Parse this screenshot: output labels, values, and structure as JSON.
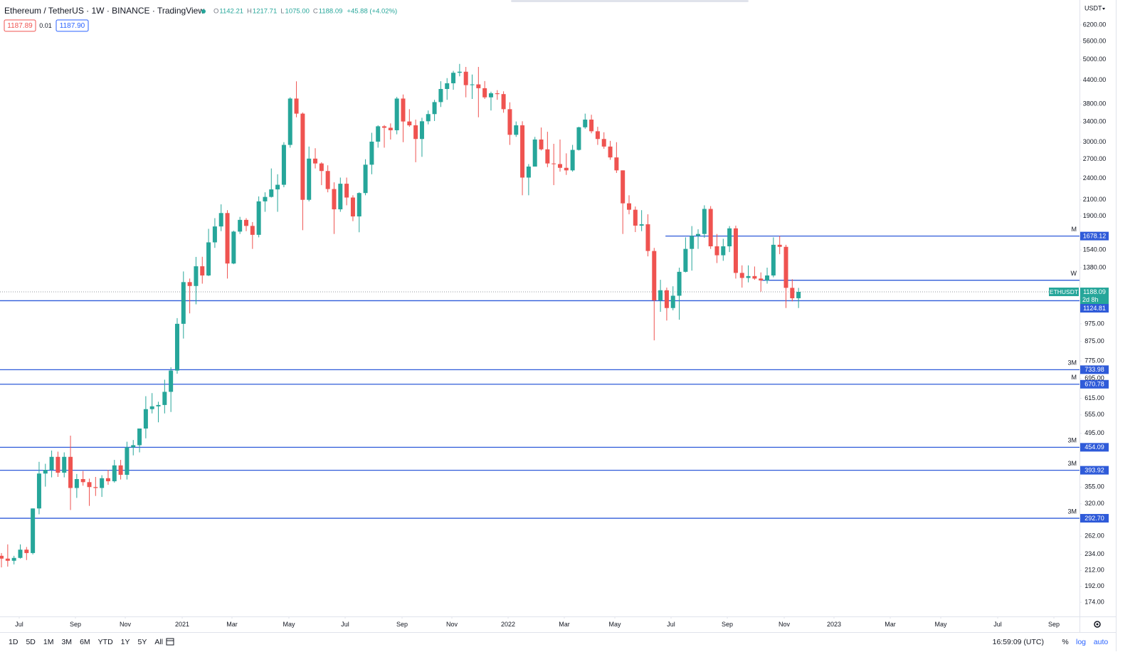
{
  "header": {
    "symbol": "Ethereum / TetherUS · 1W · BINANCE · TradingView",
    "legend": [
      {
        "key": "O",
        "value": "1142.21"
      },
      {
        "key": "H",
        "value": "1217.71"
      },
      {
        "key": "L",
        "value": "1075.00"
      },
      {
        "key": "C",
        "value": "1188.09"
      },
      {
        "key": "",
        "value": "+45.88 (+4.02%)"
      }
    ],
    "bid": "1187.89",
    "spread": "0.01",
    "ask": "1187.90",
    "currency": "USDT"
  },
  "toolbar": {
    "ranges": [
      "1D",
      "5D",
      "1M",
      "3M",
      "6M",
      "YTD",
      "1Y",
      "5Y",
      "All"
    ],
    "clock": "16:59:09 (UTC)",
    "percent": "%",
    "log": "log",
    "auto": "auto"
  },
  "chart_data": {
    "type": "candlestick",
    "log_scale": true,
    "grid": false,
    "up_color": "#26a69a",
    "down_color": "#ef5350",
    "level_color": "#2f5bd9",
    "xlim": [
      -0.23,
      171.77
    ],
    "ylim": [
      159.4,
      7232
    ],
    "xticks": [
      {
        "value": 2.83,
        "label": "Jul"
      },
      {
        "value": 11.79,
        "label": "Sep"
      },
      {
        "value": 19.73,
        "label": "Nov"
      },
      {
        "value": 28.8,
        "label": "2021"
      },
      {
        "value": 36.73,
        "label": "Mar"
      },
      {
        "value": 45.8,
        "label": "May"
      },
      {
        "value": 54.76,
        "label": "Jul"
      },
      {
        "value": 63.83,
        "label": "Sep"
      },
      {
        "value": 71.77,
        "label": "Nov"
      },
      {
        "value": 80.73,
        "label": "2022"
      },
      {
        "value": 89.68,
        "label": "Mar"
      },
      {
        "value": 97.73,
        "label": "May"
      },
      {
        "value": 106.69,
        "label": "Jul"
      },
      {
        "value": 115.65,
        "label": "Sep"
      },
      {
        "value": 124.72,
        "label": "Nov"
      },
      {
        "value": 132.65,
        "label": "2023"
      },
      {
        "value": 141.61,
        "label": "Mar"
      },
      {
        "value": 149.66,
        "label": "May"
      },
      {
        "value": 158.73,
        "label": "Jul"
      },
      {
        "value": 167.69,
        "label": "Sep"
      }
    ],
    "yticks": [
      {
        "value": 6200,
        "label": "6200.00"
      },
      {
        "value": 5600,
        "label": "5600.00"
      },
      {
        "value": 5000,
        "label": "5000.00"
      },
      {
        "value": 4400,
        "label": "4400.00"
      },
      {
        "value": 3800,
        "label": "3800.00"
      },
      {
        "value": 3400,
        "label": "3400.00"
      },
      {
        "value": 3000,
        "label": "3000.00"
      },
      {
        "value": 2700,
        "label": "2700.00"
      },
      {
        "value": 2400,
        "label": "2400.00"
      },
      {
        "value": 2100,
        "label": "2100.00"
      },
      {
        "value": 1900,
        "label": "1900.00"
      },
      {
        "value": 1540,
        "label": "1540.00"
      },
      {
        "value": 1380,
        "label": "1380.00"
      },
      {
        "value": 975,
        "label": "975.00"
      },
      {
        "value": 875,
        "label": "875.00"
      },
      {
        "value": 775,
        "label": "775.00"
      },
      {
        "value": 695,
        "label": "695.00"
      },
      {
        "value": 615,
        "label": "615.00"
      },
      {
        "value": 555,
        "label": "555.00"
      },
      {
        "value": 495,
        "label": "495.00"
      },
      {
        "value": 355,
        "label": "355.00"
      },
      {
        "value": 320,
        "label": "320.00"
      },
      {
        "value": 262,
        "label": "262.00"
      },
      {
        "value": 234,
        "label": "234.00"
      },
      {
        "value": 212,
        "label": "212.00"
      },
      {
        "value": 192,
        "label": "192.00"
      },
      {
        "value": 174,
        "label": "174.00"
      }
    ],
    "levels": [
      {
        "value": 1678.12,
        "tag": "M",
        "start": 105.8
      },
      {
        "value": 1276.72,
        "tag": "W",
        "start": 121.1
      },
      {
        "value": 1124.81
      },
      {
        "value": 733.98,
        "tag": "3M"
      },
      {
        "value": 670.78,
        "tag": "M"
      },
      {
        "value": 454.09,
        "tag": "3M"
      },
      {
        "value": 393.92,
        "tag": "3M"
      },
      {
        "value": 292.7,
        "label": "292.70",
        "tag": "3M"
      }
    ],
    "last": {
      "value": 1188.09,
      "symbol": "ETHUSDT",
      "countdown": "2d 8h"
    },
    "ohlc": [
      [
        232,
        236,
        216,
        228
      ],
      [
        228,
        249,
        217,
        225
      ],
      [
        225,
        232,
        220,
        229
      ],
      [
        229,
        249,
        228,
        241
      ],
      [
        241,
        245,
        226,
        236
      ],
      [
        236,
        311,
        234,
        311
      ],
      [
        311,
        415,
        300,
        386
      ],
      [
        386,
        410,
        356,
        395
      ],
      [
        395,
        445,
        377,
        428
      ],
      [
        428,
        442,
        378,
        388
      ],
      [
        388,
        440,
        377,
        428
      ],
      [
        428,
        488,
        308,
        353
      ],
      [
        353,
        385,
        332,
        373
      ],
      [
        373,
        392,
        358,
        366
      ],
      [
        366,
        374,
        316,
        355
      ],
      [
        355,
        378,
        336,
        353
      ],
      [
        353,
        382,
        334,
        375
      ],
      [
        375,
        395,
        360,
        368
      ],
      [
        368,
        420,
        365,
        406
      ],
      [
        406,
        420,
        372,
        383
      ],
      [
        383,
        470,
        372,
        454
      ],
      [
        454,
        475,
        432,
        460
      ],
      [
        460,
        510,
        440,
        510
      ],
      [
        510,
        623,
        480,
        575
      ],
      [
        575,
        635,
        560,
        585
      ],
      [
        585,
        602,
        530,
        590
      ],
      [
        590,
        690,
        560,
        640
      ],
      [
        640,
        745,
        565,
        730
      ],
      [
        730,
        1010,
        716,
        975
      ],
      [
        975,
        1348,
        890,
        1262
      ],
      [
        1262,
        1290,
        1040,
        1232
      ],
      [
        1232,
        1475,
        1100,
        1392
      ],
      [
        1392,
        1476,
        1250,
        1315
      ],
      [
        1315,
        1755,
        1310,
        1614
      ],
      [
        1614,
        1875,
        1560,
        1781
      ],
      [
        1781,
        2042,
        1730,
        1935
      ],
      [
        1935,
        1970,
        1290,
        1416
      ],
      [
        1416,
        1735,
        1410,
        1725
      ],
      [
        1725,
        1890,
        1700,
        1855
      ],
      [
        1855,
        1875,
        1730,
        1787
      ],
      [
        1787,
        1830,
        1550,
        1691
      ],
      [
        1691,
        2145,
        1665,
        2080
      ],
      [
        2080,
        2200,
        1950,
        2138
      ],
      [
        2138,
        2550,
        2130,
        2240
      ],
      [
        2240,
        2460,
        1950,
        2305
      ],
      [
        2305,
        3000,
        2270,
        2950
      ],
      [
        2950,
        3960,
        2900,
        3930
      ],
      [
        3930,
        4372,
        3500,
        3580
      ],
      [
        3580,
        3605,
        1740,
        2100
      ],
      [
        2100,
        2920,
        2080,
        2710
      ],
      [
        2710,
        2890,
        2550,
        2630
      ],
      [
        2630,
        2650,
        2300,
        2510
      ],
      [
        2510,
        2600,
        2200,
        2245
      ],
      [
        2245,
        2340,
        1700,
        1980
      ],
      [
        1980,
        2410,
        1950,
        2320
      ],
      [
        2320,
        2410,
        2030,
        2130
      ],
      [
        2130,
        2160,
        1840,
        1895
      ],
      [
        1895,
        2200,
        1718,
        2190
      ],
      [
        2190,
        2700,
        2160,
        2610
      ],
      [
        2610,
        3180,
        2460,
        3010
      ],
      [
        3010,
        3330,
        2900,
        3310
      ],
      [
        3310,
        3335,
        2900,
        3280
      ],
      [
        3280,
        3370,
        3050,
        3230
      ],
      [
        3230,
        3970,
        3150,
        3930
      ],
      [
        3930,
        4030,
        3000,
        3410
      ],
      [
        3410,
        3680,
        3300,
        3330
      ],
      [
        3330,
        3450,
        2650,
        3060
      ],
      [
        3060,
        3490,
        2740,
        3415
      ],
      [
        3415,
        3650,
        3350,
        3570
      ],
      [
        3570,
        3900,
        3420,
        3845
      ],
      [
        3845,
        4375,
        3730,
        4170
      ],
      [
        4170,
        4460,
        3900,
        4320
      ],
      [
        4320,
        4665,
        4150,
        4610
      ],
      [
        4610,
        4870,
        4510,
        4640
      ],
      [
        4640,
        4780,
        3960,
        4270
      ],
      [
        4270,
        4560,
        3920,
        4290
      ],
      [
        4290,
        4780,
        3500,
        4190
      ],
      [
        4190,
        4380,
        3920,
        3960
      ],
      [
        3960,
        4100,
        3650,
        4060
      ],
      [
        4060,
        4140,
        3900,
        4040
      ],
      [
        4040,
        4110,
        3600,
        3680
      ],
      [
        3680,
        3840,
        2950,
        3140
      ],
      [
        3140,
        3410,
        3100,
        3330
      ],
      [
        3330,
        3415,
        2160,
        2410
      ],
      [
        2410,
        2620,
        2160,
        2580
      ],
      [
        2580,
        3100,
        2580,
        3050
      ],
      [
        3050,
        3285,
        2850,
        2870
      ],
      [
        2870,
        3200,
        2570,
        2630
      ],
      [
        2630,
        2970,
        2300,
        2620
      ],
      [
        2620,
        3050,
        2500,
        2560
      ],
      [
        2560,
        2800,
        2450,
        2520
      ],
      [
        2520,
        2950,
        2500,
        2860
      ],
      [
        2860,
        3300,
        2850,
        3290
      ],
      [
        3290,
        3580,
        3260,
        3450
      ],
      [
        3450,
        3555,
        3170,
        3210
      ],
      [
        3210,
        3300,
        2950,
        3060
      ],
      [
        3060,
        3190,
        2880,
        2920
      ],
      [
        2920,
        3025,
        2690,
        2730
      ],
      [
        2730,
        3000,
        2480,
        2520
      ],
      [
        2520,
        2520,
        1700,
        2055
      ],
      [
        2055,
        2160,
        1920,
        1975
      ],
      [
        1975,
        2015,
        1720,
        1790
      ],
      [
        1790,
        1970,
        1730,
        1805
      ],
      [
        1805,
        1920,
        1480,
        1530
      ],
      [
        1530,
        1560,
        880,
        1127
      ],
      [
        1127,
        1280,
        1050,
        1200
      ],
      [
        1200,
        1220,
        995,
        1075
      ],
      [
        1075,
        1230,
        1060,
        1160
      ],
      [
        1160,
        1380,
        1000,
        1345
      ],
      [
        1345,
        1665,
        1340,
        1550
      ],
      [
        1550,
        1785,
        1355,
        1680
      ],
      [
        1680,
        1750,
        1550,
        1700
      ],
      [
        1700,
        2030,
        1660,
        1985
      ],
      [
        1985,
        2020,
        1550,
        1575
      ],
      [
        1575,
        1700,
        1420,
        1490
      ],
      [
        1490,
        1650,
        1440,
        1575
      ],
      [
        1575,
        1785,
        1520,
        1760
      ],
      [
        1760,
        1790,
        1290,
        1336
      ],
      [
        1336,
        1400,
        1220,
        1295
      ],
      [
        1295,
        1400,
        1260,
        1310
      ],
      [
        1310,
        1390,
        1280,
        1290
      ],
      [
        1290,
        1340,
        1190,
        1275
      ],
      [
        1275,
        1380,
        1250,
        1315
      ],
      [
        1315,
        1665,
        1300,
        1590
      ],
      [
        1590,
        1680,
        1500,
        1570
      ],
      [
        1570,
        1590,
        1075,
        1218
      ],
      [
        1218,
        1285,
        1120,
        1142
      ],
      [
        1142.21,
        1217.71,
        1075,
        1188.09
      ]
    ]
  }
}
